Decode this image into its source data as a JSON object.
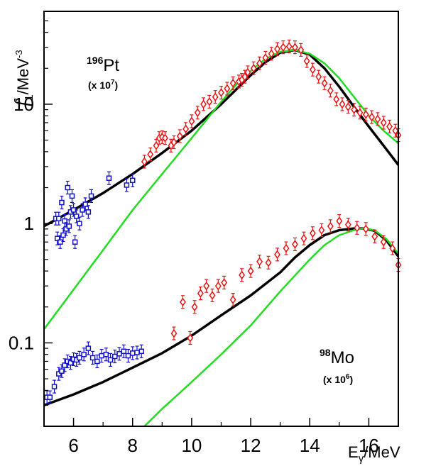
{
  "chart_data": {
    "type": "scatter",
    "ylabel": "f1/MeV-3",
    "xlabel": "Eγ/MeV",
    "ylim": [
      0.02,
      60
    ],
    "xlim": [
      5.0,
      17.0
    ],
    "y_scale": "log",
    "x_ticks": [
      {
        "value": 6,
        "label": "6"
      },
      {
        "value": 8,
        "label": "8"
      },
      {
        "value": 10,
        "label": "10"
      },
      {
        "value": 12,
        "label": "12"
      },
      {
        "value": 14,
        "label": "14"
      },
      {
        "value": 16,
        "label": "16"
      }
    ],
    "y_ticks": [
      {
        "value": 0.1,
        "label": "0.1"
      },
      {
        "value": 1,
        "label": "1"
      },
      {
        "value": 10,
        "label": "10"
      }
    ],
    "annotations": [
      {
        "id": "pt",
        "mass": "196",
        "symbol": "Pt",
        "scale_prefix": "(x 10",
        "scale_exp": "7",
        "scale_suffix": ")"
      },
      {
        "id": "mo",
        "mass": "98",
        "symbol": "Mo",
        "scale_prefix": "(x 10",
        "scale_exp": "6",
        "scale_suffix": ")"
      }
    ],
    "colors": {
      "black_curve": "#000000",
      "green_curve": "#22dd22",
      "red_points": "#ee1111",
      "blue_points": "#1111cc"
    },
    "series": [
      {
        "marker": "line",
        "color": "#000000",
        "width": 3.5,
        "x": [
          5.0,
          6.0,
          7.0,
          8.0,
          9.0,
          10.0,
          11.0,
          12.0,
          12.5,
          13.0,
          13.5,
          14.0,
          14.5,
          15.0,
          15.5,
          16.0,
          16.5,
          17.0
        ],
        "y": [
          0.95,
          1.3,
          1.8,
          2.6,
          3.9,
          6.0,
          10.0,
          17.5,
          22.5,
          27.0,
          28.5,
          26.0,
          20.0,
          14.0,
          9.5,
          6.5,
          4.5,
          3.1
        ]
      },
      {
        "marker": "line",
        "color": "#22dd22",
        "width": 2.5,
        "x": [
          5.0,
          6.0,
          7.0,
          8.0,
          9.0,
          10.0,
          11.0,
          11.5,
          12.0,
          12.5,
          13.0,
          13.5,
          14.0,
          14.5,
          15.0,
          15.5,
          16.0,
          16.5,
          17.0
        ],
        "y": [
          0.13,
          0.28,
          0.6,
          1.3,
          2.6,
          5.2,
          10.5,
          14.5,
          19.0,
          24.0,
          27.5,
          28.5,
          26.5,
          22.0,
          16.5,
          11.5,
          8.0,
          6.0,
          4.7
        ]
      },
      {
        "marker": "line",
        "color": "#000000",
        "width": 3.5,
        "x": [
          5.0,
          6.0,
          7.0,
          8.0,
          9.0,
          10.0,
          11.0,
          12.0,
          13.0,
          13.5,
          14.0,
          14.5,
          15.0,
          15.5,
          15.8,
          16.2,
          16.6,
          17.0
        ],
        "y": [
          0.03,
          0.037,
          0.047,
          0.062,
          0.082,
          0.115,
          0.17,
          0.25,
          0.39,
          0.52,
          0.66,
          0.8,
          0.88,
          0.91,
          0.91,
          0.87,
          0.72,
          0.53
        ]
      },
      {
        "marker": "line",
        "color": "#22dd22",
        "width": 2.5,
        "x": [
          8.4,
          9.0,
          10.0,
          11.0,
          12.0,
          13.0,
          14.0,
          14.5,
          15.0,
          15.5,
          15.8,
          16.2,
          16.6,
          17.0
        ],
        "y": [
          0.02,
          0.028,
          0.047,
          0.08,
          0.14,
          0.27,
          0.5,
          0.66,
          0.8,
          0.88,
          0.91,
          0.88,
          0.74,
          0.56
        ]
      },
      {
        "marker": "diamond",
        "color": "#ee1111",
        "x": [
          8.4,
          8.6,
          8.8,
          8.9,
          9.0,
          9.1,
          9.3,
          9.4,
          9.6,
          9.8,
          10.0,
          10.2,
          10.4,
          10.6,
          10.8,
          11.0,
          11.2,
          11.4,
          11.6,
          11.7,
          11.8,
          11.9,
          12.1,
          12.3,
          12.5,
          12.7,
          12.9,
          13.1,
          13.3,
          13.5,
          13.7,
          13.9,
          14.1,
          14.3,
          14.5,
          14.7,
          14.9,
          15.1,
          15.3,
          15.5,
          15.7,
          15.9,
          16.1,
          16.3,
          16.5,
          16.7,
          16.9,
          17.0
        ],
        "y": [
          3.3,
          3.8,
          4.5,
          5.2,
          5.3,
          5.2,
          4.5,
          4.8,
          5.4,
          6.2,
          7.2,
          8.5,
          10.0,
          10.5,
          11.5,
          12.5,
          13.5,
          15.0,
          15.5,
          16.0,
          17.0,
          18.5,
          20.0,
          22.0,
          24.5,
          26.5,
          29.0,
          30.0,
          30.5,
          30.0,
          28.5,
          23.0,
          19.5,
          17.0,
          15.0,
          13.0,
          11.0,
          10.0,
          9.5,
          9.0,
          8.5,
          8.2,
          7.8,
          7.5,
          7.0,
          6.5,
          6.0,
          5.5
        ]
      },
      {
        "marker": "square",
        "color": "#1111cc",
        "x": [
          5.4,
          5.45,
          5.5,
          5.55,
          5.6,
          5.65,
          5.7,
          5.75,
          5.8,
          5.85,
          5.9,
          5.95,
          6.0,
          6.05,
          6.1,
          6.2,
          6.3,
          6.4,
          6.5,
          6.6,
          7.2,
          7.8,
          8.0
        ],
        "y": [
          1.1,
          0.75,
          1.1,
          0.7,
          1.5,
          0.8,
          1.05,
          0.9,
          2.0,
          0.95,
          1.25,
          1.7,
          1.3,
          0.7,
          1.15,
          1.0,
          1.3,
          1.45,
          1.25,
          1.7,
          2.4,
          2.1,
          2.3
        ]
      },
      {
        "marker": "diamond",
        "color": "#ee1111",
        "x": [
          9.4,
          9.7,
          9.95,
          10.1,
          10.3,
          10.5,
          10.7,
          10.9,
          11.1,
          11.4,
          11.7,
          12.0,
          12.3,
          12.6,
          12.9,
          13.2,
          13.5,
          13.8,
          14.1,
          14.4,
          14.7,
          15.0,
          15.3,
          15.6,
          15.9,
          16.2,
          16.5,
          16.8,
          17.0
        ],
        "y": [
          0.12,
          0.22,
          0.11,
          0.2,
          0.26,
          0.3,
          0.25,
          0.3,
          0.32,
          0.23,
          0.37,
          0.4,
          0.48,
          0.47,
          0.55,
          0.62,
          0.67,
          0.75,
          0.83,
          0.88,
          0.95,
          1.05,
          0.98,
          0.92,
          0.9,
          0.78,
          0.7,
          0.62,
          0.45
        ]
      },
      {
        "marker": "square",
        "color": "#1111cc",
        "x": [
          5.1,
          5.2,
          5.35,
          5.5,
          5.6,
          5.7,
          5.8,
          5.9,
          6.0,
          6.1,
          6.2,
          6.35,
          6.5,
          6.65,
          6.8,
          6.95,
          7.1,
          7.25,
          7.4,
          7.55,
          7.7,
          7.85,
          8.0,
          8.15,
          8.3
        ],
        "y": [
          0.035,
          0.035,
          0.043,
          0.055,
          0.058,
          0.065,
          0.07,
          0.068,
          0.073,
          0.072,
          0.075,
          0.08,
          0.09,
          0.075,
          0.07,
          0.078,
          0.08,
          0.072,
          0.077,
          0.081,
          0.085,
          0.078,
          0.082,
          0.083,
          0.085
        ]
      }
    ]
  }
}
